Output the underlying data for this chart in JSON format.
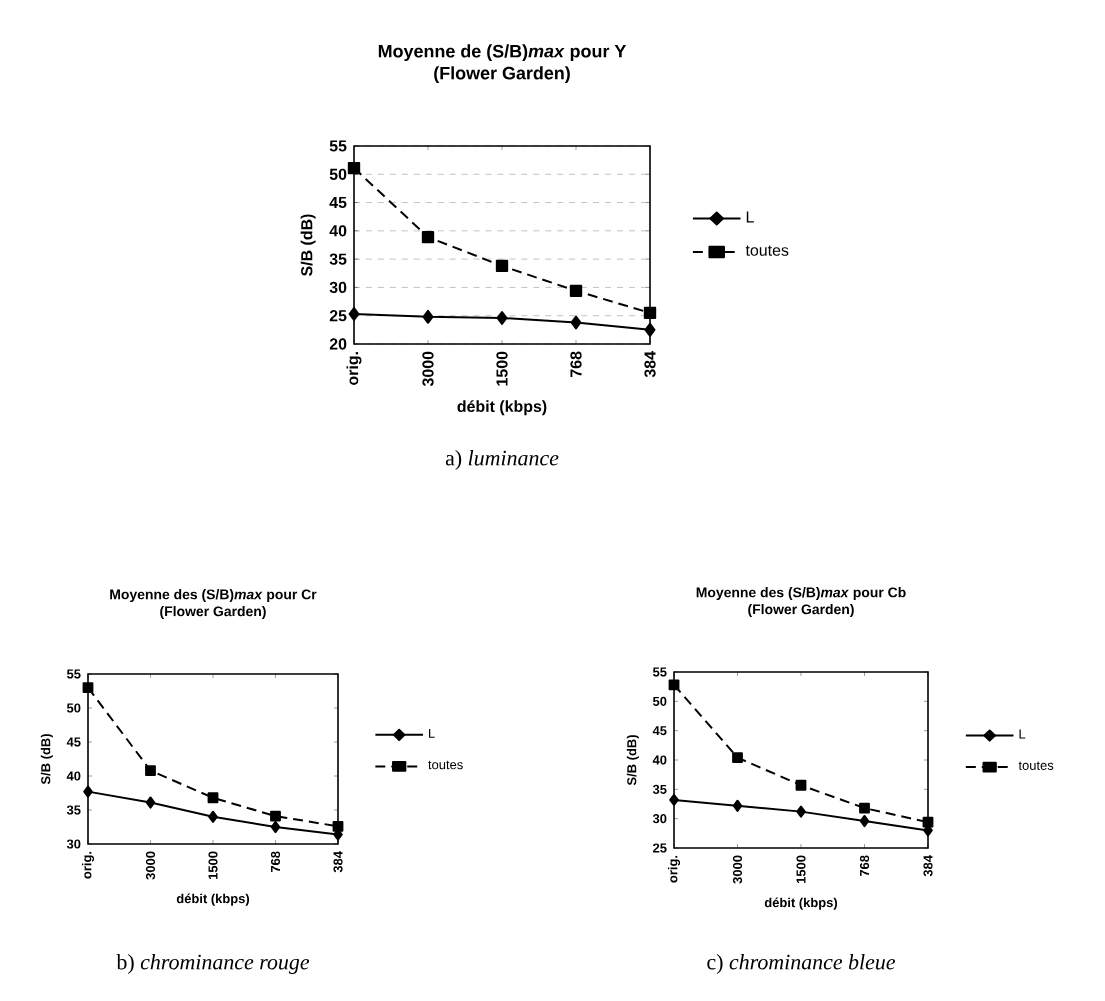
{
  "chart_data": [
    {
      "type": "line",
      "title": "Moyenne de (S/B)*max* pour Y",
      "subtitle": "(Flower Garden)",
      "xlabel": "débit (kbps)",
      "ylabel": "S/B (dB)",
      "categories": [
        "orig.",
        "3000",
        "1500",
        "768",
        "384"
      ],
      "ylim": [
        20,
        55
      ],
      "yticks": [
        20,
        25,
        30,
        35,
        40,
        45,
        50,
        55
      ],
      "grid": "y",
      "legend": "right",
      "annotations": [
        "a) *luminance*"
      ],
      "series": [
        {
          "name": "L",
          "color": "#000000",
          "marker": "diamond",
          "line_style": "solid",
          "values": [
            25.3,
            24.8,
            24.6,
            23.8,
            22.5
          ]
        },
        {
          "name": "toutes",
          "color": "#000000",
          "marker": "square",
          "line_style": "dashed",
          "values": [
            51.1,
            38.9,
            33.8,
            29.4,
            25.5
          ]
        }
      ]
    },
    {
      "type": "line",
      "title": "Moyenne des (S/B)*max* pour Cr",
      "subtitle": "(Flower Garden)",
      "xlabel": "débit (kbps)",
      "ylabel": "S/B (dB)",
      "categories": [
        "orig.",
        "3000",
        "1500",
        "768",
        "384"
      ],
      "ylim": [
        30,
        55
      ],
      "yticks": [
        30,
        35,
        40,
        45,
        50,
        55
      ],
      "legend": "right",
      "annotations": [
        "b) *chrominance rouge*"
      ],
      "series": [
        {
          "name": "L",
          "color": "#000000",
          "marker": "diamond",
          "line_style": "solid",
          "values": [
            37.7,
            36.1,
            34.0,
            32.5,
            31.4
          ]
        },
        {
          "name": "toutes",
          "color": "#000000",
          "marker": "square",
          "line_style": "dashed",
          "values": [
            53.0,
            40.8,
            36.8,
            34.1,
            32.6
          ]
        }
      ]
    },
    {
      "type": "line",
      "title": "Moyenne des (S/B)*max* pour Cb",
      "subtitle": "(Flower Garden)",
      "xlabel": "débit (kbps)",
      "ylabel": "S/B (dB)",
      "categories": [
        "orig.",
        "3000",
        "1500",
        "768",
        "384"
      ],
      "ylim": [
        25,
        55
      ],
      "yticks": [
        25,
        30,
        35,
        40,
        45,
        50,
        55
      ],
      "legend": "right",
      "annotations": [
        "c) *chrominance bleue*"
      ],
      "series": [
        {
          "name": "L",
          "color": "#000000",
          "marker": "diamond",
          "line_style": "solid",
          "values": [
            33.2,
            32.2,
            31.2,
            29.6,
            28.0
          ]
        },
        {
          "name": "toutes",
          "color": "#000000",
          "marker": "square",
          "line_style": "dashed",
          "values": [
            52.8,
            40.4,
            35.7,
            31.8,
            29.4
          ]
        }
      ]
    }
  ]
}
